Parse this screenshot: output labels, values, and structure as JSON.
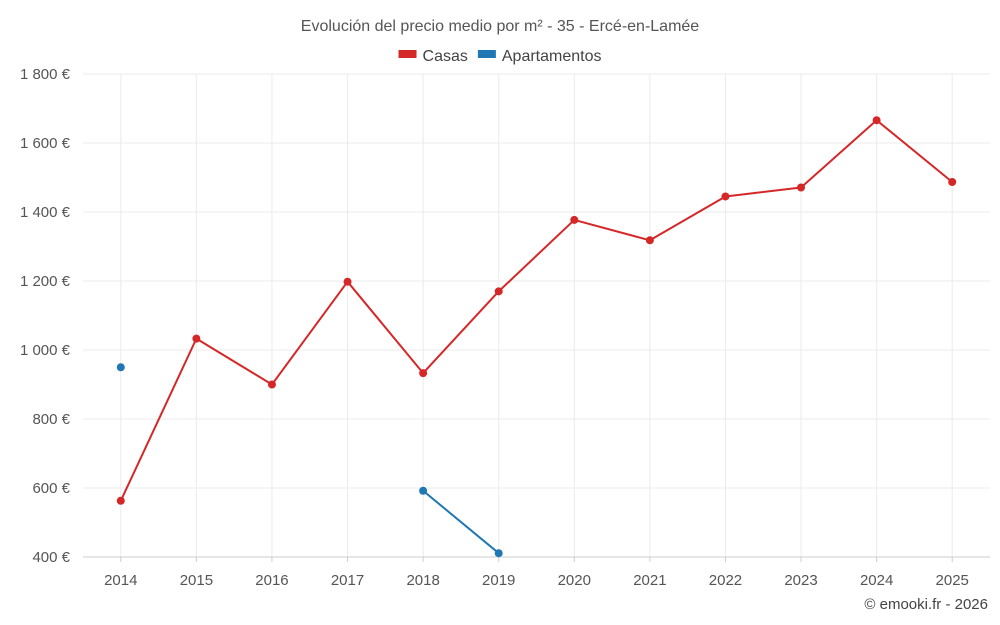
{
  "chart_data": {
    "type": "line",
    "title": "Evolución del precio medio por m² - 35 - Ercé-en-Lamée",
    "categories": [
      "2014",
      "2015",
      "2016",
      "2017",
      "2018",
      "2019",
      "2020",
      "2021",
      "2022",
      "2023",
      "2024",
      "2025"
    ],
    "series": [
      {
        "name": "Casas",
        "color": "#d62728",
        "values": [
          563,
          1033,
          900,
          1198,
          933,
          1170,
          1377,
          1318,
          1445,
          1471,
          1666,
          1487
        ]
      },
      {
        "name": "Apartamentos",
        "color": "#1f77b4",
        "values": [
          950,
          null,
          null,
          null,
          592,
          411,
          null,
          null,
          null,
          null,
          null,
          null
        ]
      }
    ],
    "ylim": [
      400,
      1800
    ],
    "yticks": [
      400,
      600,
      800,
      1000,
      1200,
      1400,
      1600,
      1800
    ],
    "ytick_labels": [
      "400 €",
      "600 €",
      "800 €",
      "1 000 €",
      "1 200 €",
      "1 400 €",
      "1 600 €",
      "1 800 €"
    ],
    "xlabel": "",
    "ylabel": "",
    "grid": true,
    "legend_position": "top-center"
  },
  "credit": "© emooki.fr - 2026"
}
